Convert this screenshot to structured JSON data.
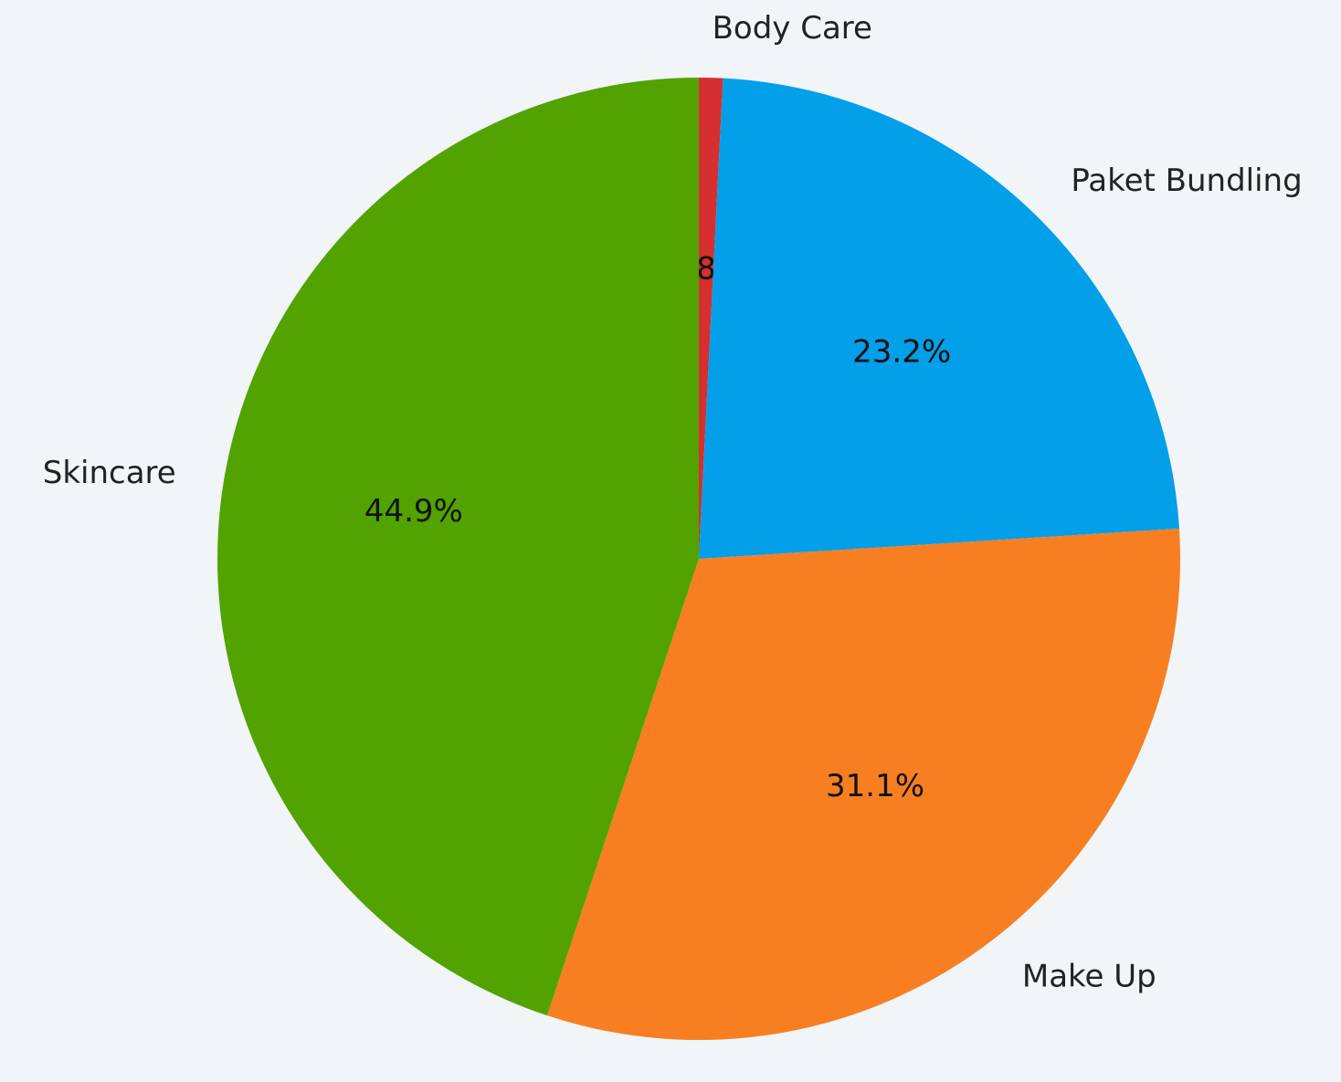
{
  "chart_data": {
    "type": "pie",
    "categories": [
      "Body Care",
      "Paket Bundling",
      "Make Up",
      "Skincare"
    ],
    "values": [
      0.8,
      23.2,
      31.1,
      44.9
    ],
    "value_labels": [
      "0.8%",
      "23.2%",
      "31.1%",
      "44.9%"
    ],
    "colors": [
      "#d62f2f",
      "#039fe8",
      "#f77f21",
      "#52a300"
    ],
    "start_angle": 90,
    "direction": "clockwise"
  }
}
